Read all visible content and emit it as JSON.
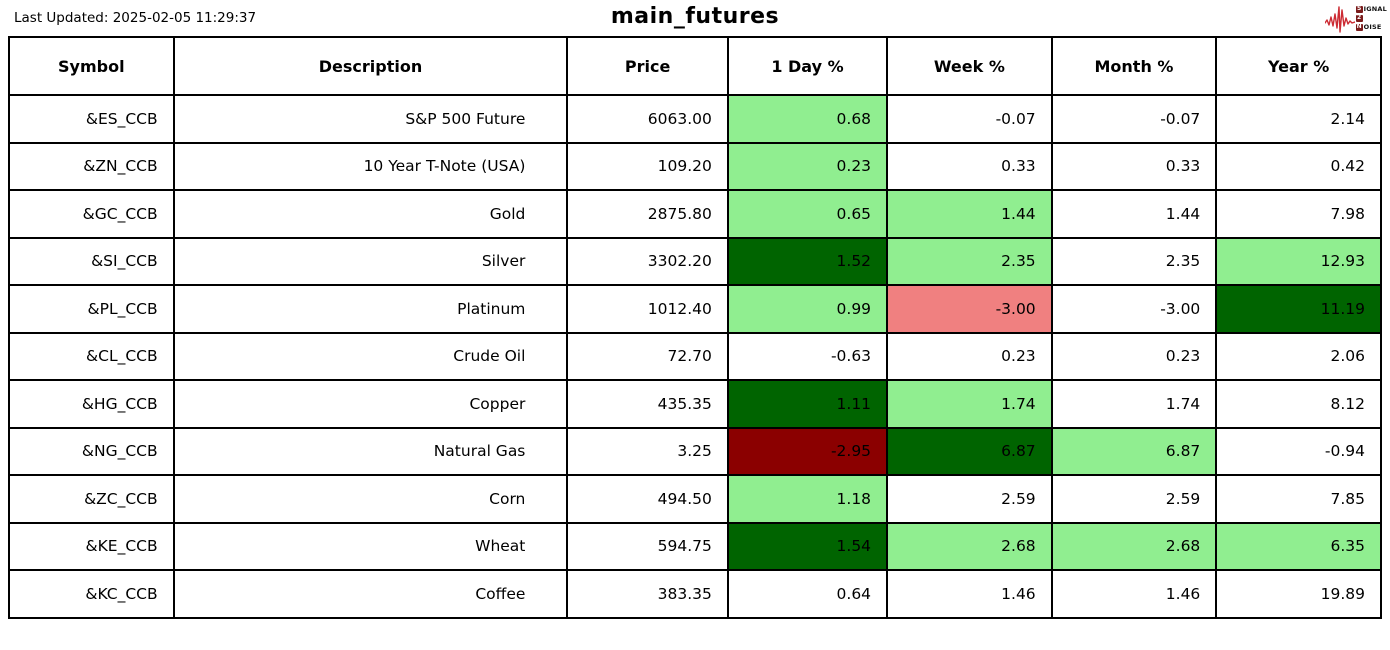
{
  "header": {
    "last_updated": "Last Updated: 2025-02-05 11:29:37",
    "title": "main_futures",
    "logo": {
      "icon": "heartbeat-waveform-icon",
      "line1_box": "S",
      "line1_rest": "IGNAL",
      "line2_box": "2",
      "line2_rest": "",
      "line3_box": "N",
      "line3_rest": "OISE"
    }
  },
  "colors": {
    "light_green": "#90EE90",
    "dark_green": "#006400",
    "light_red": "#F08080",
    "dark_red": "#8B0000",
    "border": "#000000",
    "logo_red": "#CC2B33"
  },
  "table": {
    "columns": [
      "Symbol",
      "Description",
      "Price",
      "1 Day %",
      "Week %",
      "Month %",
      "Year %"
    ],
    "rows": [
      {
        "symbol": "&ES_CCB",
        "description": "S&P 500 Future",
        "price": "6063.00",
        "day": {
          "v": "0.68",
          "bg": "light_green"
        },
        "week": {
          "v": "-0.07",
          "bg": ""
        },
        "month": {
          "v": "-0.07",
          "bg": ""
        },
        "year": {
          "v": "2.14",
          "bg": ""
        }
      },
      {
        "symbol": "&ZN_CCB",
        "description": "10 Year T-Note (USA)",
        "price": "109.20",
        "day": {
          "v": "0.23",
          "bg": "light_green"
        },
        "week": {
          "v": "0.33",
          "bg": ""
        },
        "month": {
          "v": "0.33",
          "bg": ""
        },
        "year": {
          "v": "0.42",
          "bg": ""
        }
      },
      {
        "symbol": "&GC_CCB",
        "description": "Gold",
        "price": "2875.80",
        "day": {
          "v": "0.65",
          "bg": "light_green"
        },
        "week": {
          "v": "1.44",
          "bg": "light_green"
        },
        "month": {
          "v": "1.44",
          "bg": ""
        },
        "year": {
          "v": "7.98",
          "bg": ""
        }
      },
      {
        "symbol": "&SI_CCB",
        "description": "Silver",
        "price": "3302.20",
        "day": {
          "v": "1.52",
          "bg": "dark_green"
        },
        "week": {
          "v": "2.35",
          "bg": "light_green"
        },
        "month": {
          "v": "2.35",
          "bg": ""
        },
        "year": {
          "v": "12.93",
          "bg": "light_green"
        }
      },
      {
        "symbol": "&PL_CCB",
        "description": "Platinum",
        "price": "1012.40",
        "day": {
          "v": "0.99",
          "bg": "light_green"
        },
        "week": {
          "v": "-3.00",
          "bg": "light_red"
        },
        "month": {
          "v": "-3.00",
          "bg": ""
        },
        "year": {
          "v": "11.19",
          "bg": "dark_green"
        }
      },
      {
        "symbol": "&CL_CCB",
        "description": "Crude Oil",
        "price": "72.70",
        "day": {
          "v": "-0.63",
          "bg": ""
        },
        "week": {
          "v": "0.23",
          "bg": ""
        },
        "month": {
          "v": "0.23",
          "bg": ""
        },
        "year": {
          "v": "2.06",
          "bg": ""
        }
      },
      {
        "symbol": "&HG_CCB",
        "description": "Copper",
        "price": "435.35",
        "day": {
          "v": "1.11",
          "bg": "dark_green"
        },
        "week": {
          "v": "1.74",
          "bg": "light_green"
        },
        "month": {
          "v": "1.74",
          "bg": ""
        },
        "year": {
          "v": "8.12",
          "bg": ""
        }
      },
      {
        "symbol": "&NG_CCB",
        "description": "Natural Gas",
        "price": "3.25",
        "day": {
          "v": "-2.95",
          "bg": "dark_red"
        },
        "week": {
          "v": "6.87",
          "bg": "dark_green"
        },
        "month": {
          "v": "6.87",
          "bg": "light_green"
        },
        "year": {
          "v": "-0.94",
          "bg": ""
        }
      },
      {
        "symbol": "&ZC_CCB",
        "description": "Corn",
        "price": "494.50",
        "day": {
          "v": "1.18",
          "bg": "light_green"
        },
        "week": {
          "v": "2.59",
          "bg": ""
        },
        "month": {
          "v": "2.59",
          "bg": ""
        },
        "year": {
          "v": "7.85",
          "bg": ""
        }
      },
      {
        "symbol": "&KE_CCB",
        "description": "Wheat",
        "price": "594.75",
        "day": {
          "v": "1.54",
          "bg": "dark_green"
        },
        "week": {
          "v": "2.68",
          "bg": "light_green"
        },
        "month": {
          "v": "2.68",
          "bg": "light_green"
        },
        "year": {
          "v": "6.35",
          "bg": "light_green"
        }
      },
      {
        "symbol": "&KC_CCB",
        "description": "Coffee",
        "price": "383.35",
        "day": {
          "v": "0.64",
          "bg": ""
        },
        "week": {
          "v": "1.46",
          "bg": ""
        },
        "month": {
          "v": "1.46",
          "bg": ""
        },
        "year": {
          "v": "19.89",
          "bg": ""
        }
      }
    ]
  }
}
